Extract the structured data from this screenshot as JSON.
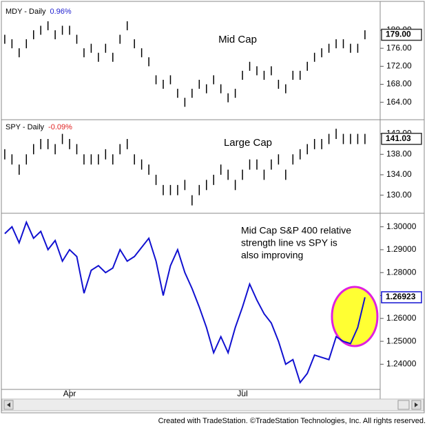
{
  "chart_data": [
    {
      "type": "ohlc",
      "title": "MDY - Daily",
      "change": "0.96%",
      "change_color": "#2020d0",
      "annotation": "Mid Cap",
      "color": "#000000",
      "high": [
        179,
        178,
        176,
        178,
        180,
        181,
        182,
        180,
        181,
        181,
        179,
        176,
        177,
        175,
        177,
        175,
        179,
        182,
        178,
        176,
        174,
        170,
        169,
        170,
        167,
        165,
        167,
        169,
        168,
        170,
        168,
        166,
        167,
        171,
        173,
        172,
        171,
        172,
        169,
        168,
        171,
        171,
        173,
        175,
        176,
        177,
        178,
        178,
        177,
        177,
        180
      ],
      "low": [
        177,
        176,
        174,
        176,
        178,
        179,
        180,
        178,
        179,
        179,
        177,
        174,
        175,
        173,
        175,
        173,
        177,
        180,
        176,
        174,
        172,
        168,
        167,
        168,
        165,
        163,
        165,
        167,
        166,
        168,
        166,
        164,
        165,
        169,
        171,
        170,
        169,
        170,
        167,
        166,
        169,
        169,
        171,
        173,
        174,
        175,
        176,
        176,
        175,
        175,
        178
      ],
      "last": {
        "value": 179,
        "label": "179.00"
      },
      "ylim": [
        160.5,
        185.5
      ],
      "yticks": [
        {
          "value": 180,
          "label": "180.00"
        },
        {
          "value": 176,
          "label": "176.00"
        },
        {
          "value": 172,
          "label": "172.00"
        },
        {
          "value": 168,
          "label": "168.00"
        },
        {
          "value": 164,
          "label": "164.00"
        }
      ]
    },
    {
      "type": "ohlc",
      "title": "SPY - Daily",
      "change": "-0.09%",
      "change_color": "#e02020",
      "annotation": "Large Cap",
      "color": "#000000",
      "high": [
        139,
        138,
        136,
        138,
        140,
        141,
        141,
        140,
        142,
        141,
        140,
        138,
        138,
        138,
        139,
        138,
        140,
        141,
        138,
        137,
        136,
        134,
        132,
        132,
        132,
        133,
        130,
        132,
        133,
        134,
        136,
        135,
        133,
        135,
        137,
        137,
        135,
        137,
        138,
        135,
        138,
        139,
        140,
        141,
        141,
        142,
        143,
        142,
        142,
        142,
        142
      ],
      "low": [
        137,
        136,
        134,
        136,
        138,
        139,
        139,
        138,
        140,
        139,
        138,
        136,
        136,
        136,
        137,
        136,
        138,
        139,
        136,
        135,
        134,
        132,
        130,
        130,
        130,
        131,
        128,
        130,
        131,
        132,
        134,
        133,
        131,
        133,
        135,
        135,
        133,
        135,
        136,
        133,
        136,
        137,
        138,
        139,
        139,
        140,
        141,
        140,
        140,
        140,
        140
      ],
      "last": {
        "value": 141.03,
        "label": "141.03"
      },
      "ylim": [
        127,
        144.5
      ],
      "yticks": [
        {
          "value": 142,
          "label": "142.00"
        },
        {
          "value": 138,
          "label": "138.00"
        },
        {
          "value": 134,
          "label": "134.00"
        },
        {
          "value": 130,
          "label": "130.00"
        }
      ]
    },
    {
      "type": "line",
      "annotation_lines": [
        "Mid Cap S&P 400 relative",
        "strength line vs SPY is",
        "also improving"
      ],
      "color": "#1010d0",
      "categories": [
        null,
        null,
        null,
        null,
        null,
        null,
        null,
        null,
        null,
        "Apr",
        null,
        null,
        null,
        null,
        null,
        null,
        null,
        null,
        null,
        null,
        null,
        null,
        null,
        null,
        null,
        null,
        null,
        null,
        null,
        null,
        null,
        null,
        null,
        "Jul",
        null,
        null,
        null,
        null,
        null,
        null,
        null,
        null,
        null,
        null,
        null,
        null,
        null,
        null,
        null,
        null,
        null
      ],
      "values": [
        1.297,
        1.3,
        1.293,
        1.302,
        1.295,
        1.298,
        1.29,
        1.294,
        1.285,
        1.29,
        1.287,
        1.271,
        1.281,
        1.283,
        1.28,
        1.282,
        1.29,
        1.285,
        1.287,
        1.291,
        1.295,
        1.285,
        1.27,
        1.283,
        1.29,
        1.28,
        1.273,
        1.265,
        1.256,
        1.245,
        1.252,
        1.245,
        1.256,
        1.265,
        1.275,
        1.268,
        1.262,
        1.258,
        1.25,
        1.24,
        1.242,
        1.232,
        1.236,
        1.244,
        1.243,
        1.242,
        1.252,
        1.25,
        1.249,
        1.256,
        1.26923
      ],
      "last": {
        "value": 1.26923,
        "label": "1.26923"
      },
      "ylim": [
        1.229,
        1.305
      ],
      "yticks": [
        {
          "value": 1.3,
          "label": "1.30000"
        },
        {
          "value": 1.29,
          "label": "1.29000"
        },
        {
          "value": 1.28,
          "label": "1.28000"
        },
        {
          "value": 1.27,
          "label": "1.27000"
        },
        {
          "value": 1.26,
          "label": "1.26000"
        },
        {
          "value": 1.25,
          "label": "1.25000"
        },
        {
          "value": 1.24,
          "label": "1.24000"
        }
      ]
    }
  ],
  "footer": "Created with TradeStation. ©TradeStation Technologies, Inc. All rights reserved."
}
